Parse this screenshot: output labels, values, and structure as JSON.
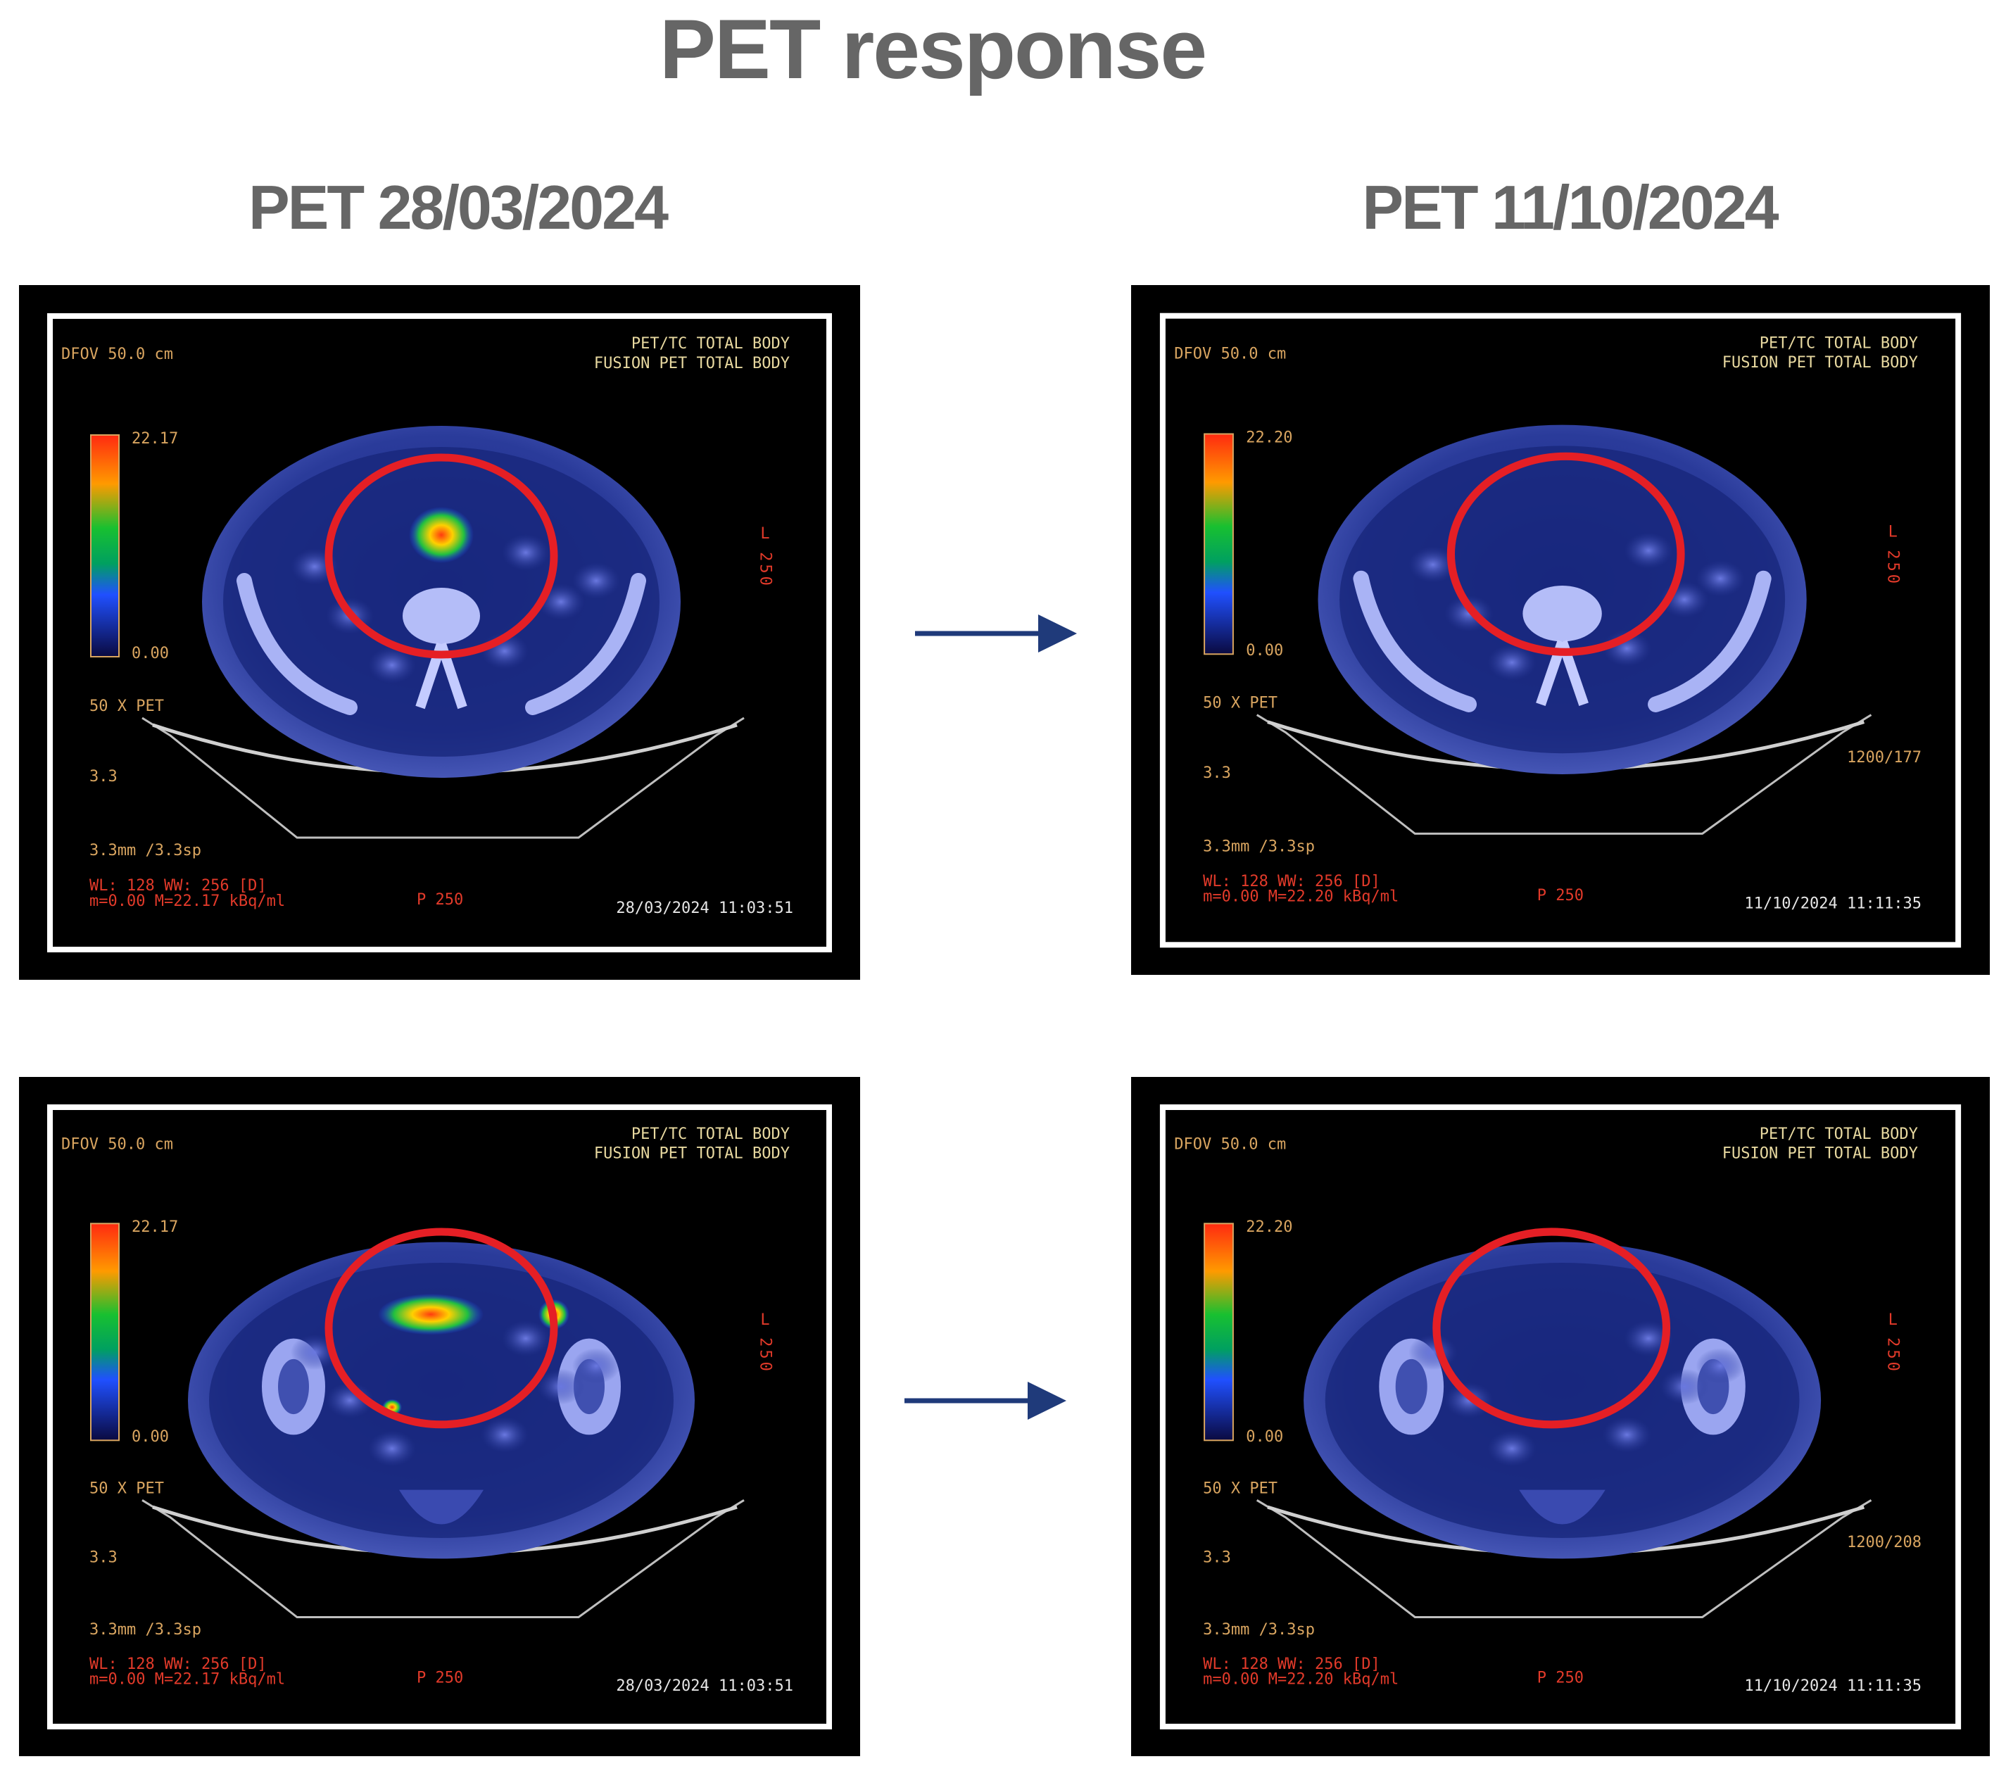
{
  "title": "PET response",
  "columns": [
    {
      "heading": "PET 28/03/2024"
    },
    {
      "heading": "PET 11/10/2024"
    }
  ],
  "panels": [
    {
      "dfov": "DFOV 50.0 cm",
      "header_line1": "PET/TC TOTAL BODY",
      "header_line2": "FUSION PET TOTAL BODY",
      "scale_max": "22.17",
      "scale_min": "0.00",
      "zoom": "50 X PET",
      "thickness": "3.3",
      "spacing": "3.3mm /3.3sp",
      "wl": "WL: 128 WW: 256 [D]",
      "range": "m=0.00 M=22.17 kBq/ml",
      "position": "P 250",
      "orient": "L",
      "orient_num": "250",
      "extra": "",
      "timestamp": "28/03/2024 11:03:51"
    },
    {
      "dfov": "DFOV 50.0 cm",
      "header_line1": "PET/TC TOTAL BODY",
      "header_line2": "FUSION PET TOTAL BODY",
      "scale_max": "22.20",
      "scale_min": "0.00",
      "zoom": "50 X PET",
      "thickness": "3.3",
      "spacing": "3.3mm /3.3sp",
      "wl": "WL: 128 WW: 256 [D]",
      "range": "m=0.00 M=22.20 kBq/ml",
      "position": "P 250",
      "orient": "L",
      "orient_num": "250",
      "extra": "1200/177",
      "timestamp": "11/10/2024 11:11:35"
    },
    {
      "dfov": "DFOV 50.0 cm",
      "header_line1": "PET/TC TOTAL BODY",
      "header_line2": "FUSION PET TOTAL BODY",
      "scale_max": "22.17",
      "scale_min": "0.00",
      "zoom": "50 X PET",
      "thickness": "3.3",
      "spacing": "3.3mm /3.3sp",
      "wl": "WL: 128 WW: 256 [D]",
      "range": "m=0.00 M=22.17 kBq/ml",
      "position": "P 250",
      "orient": "L",
      "orient_num": "250",
      "extra": "",
      "timestamp": "28/03/2024 11:03:51"
    },
    {
      "dfov": "DFOV 50.0 cm",
      "header_line1": "PET/TC TOTAL BODY",
      "header_line2": "FUSION PET TOTAL BODY",
      "scale_max": "22.20",
      "scale_min": "0.00",
      "zoom": "50 X PET",
      "thickness": "3.3",
      "spacing": "3.3mm /3.3sp",
      "wl": "WL: 128 WW: 256 [D]",
      "range": "m=0.00 M=22.20 kBq/ml",
      "position": "P 250",
      "orient": "L",
      "orient_num": "250",
      "extra": "1200/208",
      "timestamp": "11/10/2024 11:11:35"
    }
  ],
  "colors": {
    "circle": "#e51f25",
    "arrow": "#1f3a7a",
    "heading": "#666666"
  }
}
